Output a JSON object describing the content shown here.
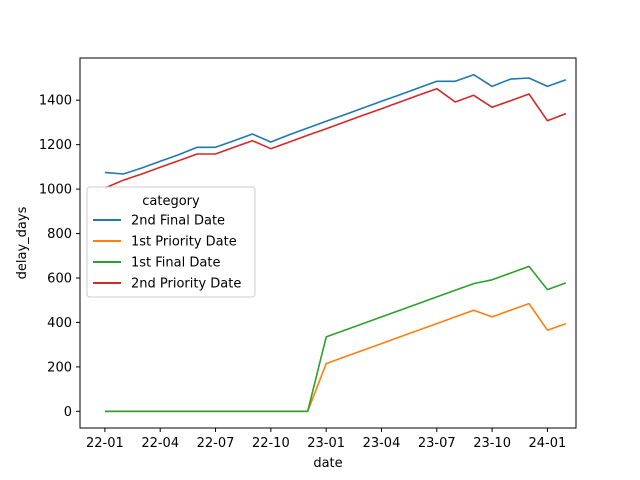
{
  "chart_data": {
    "type": "line",
    "xlabel": "date",
    "ylabel": "delay_days",
    "x_ticks": [
      "22-01",
      "22-04",
      "22-07",
      "22-10",
      "23-01",
      "23-04",
      "23-07",
      "23-10",
      "24-01"
    ],
    "y_ticks": [
      "0",
      "200",
      "400",
      "600",
      "800",
      "1000",
      "1200",
      "1400"
    ],
    "ylim": [
      -75,
      1590
    ],
    "xlim": [
      "2021-11",
      "2024-03"
    ],
    "grid": false,
    "legend": {
      "title": "category",
      "placement": "center-left"
    },
    "x": [
      "2022-01",
      "2022-02",
      "2022-03",
      "2022-04",
      "2022-05",
      "2022-06",
      "2022-07",
      "2022-08",
      "2022-09",
      "2022-10",
      "2022-11",
      "2022-12",
      "2023-01",
      "2023-02",
      "2023-03",
      "2023-04",
      "2023-05",
      "2023-06",
      "2023-07",
      "2023-08",
      "2023-09",
      "2023-10",
      "2023-11",
      "2023-12",
      "2024-01",
      "2024-02"
    ],
    "series": [
      {
        "name": "2nd Final Date",
        "color": "#1f77b4",
        "values": [
          1075,
          1068,
          1095,
          1125,
          1155,
          1188,
          1188,
          1218,
          1248,
          1212,
          1245,
          1275,
          1305,
          1335,
          1365,
          1395,
          1425,
          1455,
          1485,
          1485,
          1515,
          1462,
          1495,
          1500,
          1462,
          1492
        ]
      },
      {
        "name": "1st Priority Date",
        "color": "#ff7f0e",
        "values": [
          0,
          0,
          0,
          0,
          0,
          0,
          0,
          0,
          0,
          0,
          0,
          0,
          215,
          245,
          275,
          305,
          335,
          365,
          395,
          425,
          455,
          425,
          455,
          485,
          365,
          395
        ]
      },
      {
        "name": "1st Final Date",
        "color": "#2ca02c",
        "values": [
          0,
          0,
          0,
          0,
          0,
          0,
          0,
          0,
          0,
          0,
          0,
          0,
          335,
          365,
          395,
          425,
          455,
          485,
          515,
          545,
          575,
          592,
          622,
          652,
          548,
          578
        ]
      },
      {
        "name": "2nd Priority Date",
        "color": "#d62728",
        "values": [
          1005,
          1040,
          1068,
          1098,
          1128,
          1158,
          1158,
          1188,
          1218,
          1182,
          1212,
          1242,
          1272,
          1302,
          1332,
          1362,
          1392,
          1422,
          1452,
          1392,
          1422,
          1368,
          1398,
          1428,
          1308,
          1340
        ]
      }
    ]
  }
}
